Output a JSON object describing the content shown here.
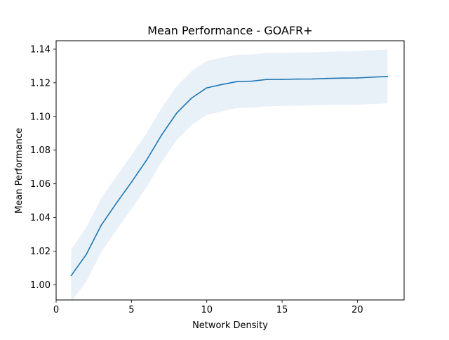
{
  "chart_data": {
    "type": "line",
    "title": "Mean Performance - GOAFR+",
    "xlabel": "Network Density",
    "ylabel": "Mean Performance",
    "xlim": [
      0,
      23.1
    ],
    "ylim": [
      0.991,
      1.145
    ],
    "xticks": [
      0,
      5,
      10,
      15,
      20
    ],
    "yticks": [
      1.0,
      1.02,
      1.04,
      1.06,
      1.08,
      1.1,
      1.12,
      1.14
    ],
    "xtick_labels": [
      "0",
      "5",
      "10",
      "15",
      "20"
    ],
    "ytick_labels": [
      "1.00",
      "1.02",
      "1.04",
      "1.06",
      "1.08",
      "1.10",
      "1.12",
      "1.14"
    ],
    "grid": false,
    "series": [
      {
        "x": [
          1,
          2,
          3,
          4,
          5,
          6,
          7,
          8,
          9,
          10,
          11,
          12,
          13,
          14,
          15,
          16,
          17,
          18,
          19,
          20,
          21,
          22
        ],
        "values": [
          1.0055,
          1.018,
          1.0355,
          1.0485,
          1.061,
          1.074,
          1.089,
          1.102,
          1.111,
          1.117,
          1.119,
          1.1207,
          1.121,
          1.122,
          1.122,
          1.1222,
          1.1223,
          1.1226,
          1.1228,
          1.1229,
          1.1234,
          1.1238
        ],
        "lower": [
          0.99,
          1.002,
          1.0195,
          1.0325,
          1.045,
          1.058,
          1.073,
          1.086,
          1.095,
          1.101,
          1.103,
          1.105,
          1.1053,
          1.1061,
          1.1063,
          1.1064,
          1.1066,
          1.1068,
          1.1069,
          1.107,
          1.1074,
          1.1078
        ],
        "upper": [
          1.021,
          1.034,
          1.0515,
          1.0645,
          1.077,
          1.09,
          1.105,
          1.118,
          1.127,
          1.133,
          1.135,
          1.1367,
          1.1368,
          1.1379,
          1.1379,
          1.138,
          1.1381,
          1.1384,
          1.1387,
          1.1388,
          1.1394,
          1.1398
        ]
      }
    ],
    "colors": {
      "line": "#1f77b4",
      "band": "#e8f0f8",
      "axis": "#000000"
    }
  }
}
